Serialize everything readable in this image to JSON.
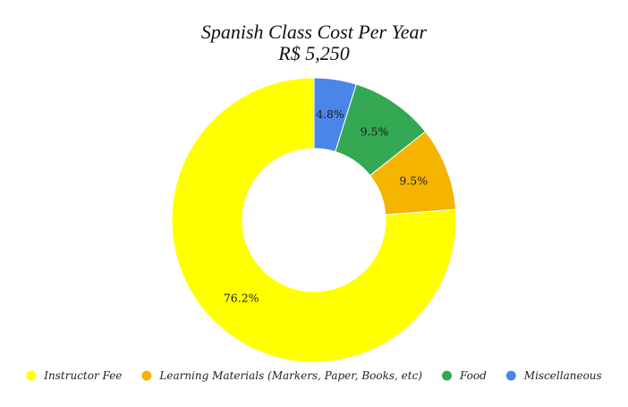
{
  "chart_data": {
    "type": "pie",
    "donut": true,
    "title": "Spanish Class Cost Per Year",
    "subtitle": "R$ 5,250",
    "legend_position": "bottom",
    "categories": [
      "Instructor Fee",
      "Learning Materials (Markers, Paper, Books, etc)",
      "Food",
      "Miscellaneous"
    ],
    "values": [
      76.2,
      9.5,
      9.5,
      4.8
    ],
    "data_labels": [
      "76.2%",
      "9.5%",
      "9.5%",
      "4.8%"
    ],
    "colors": [
      "#ffff00",
      "#f4b400",
      "#34a853",
      "#4a86e8"
    ]
  }
}
